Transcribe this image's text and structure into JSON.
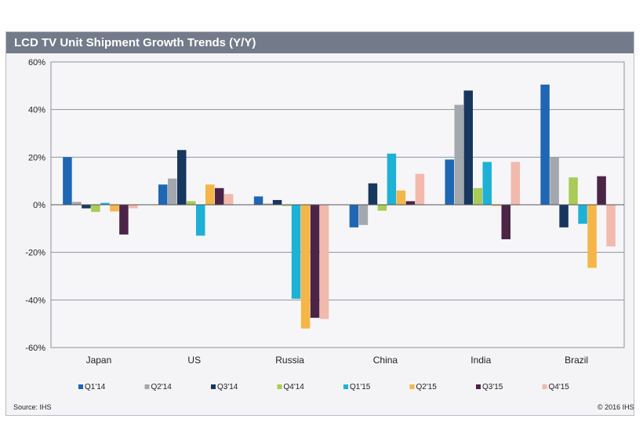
{
  "chart_data": {
    "type": "bar",
    "title": "LCD TV Unit Shipment Growth Trends (Y/Y)",
    "xlabel": "",
    "ylabel": "",
    "ylim": [
      -60,
      60
    ],
    "yticks": [
      60,
      40,
      20,
      0,
      -20,
      -40,
      -60
    ],
    "ytick_labels": [
      "60%",
      "40%",
      "20%",
      "0%",
      "-20%",
      "-40%",
      "-60%"
    ],
    "grid": true,
    "legend_position": "bottom",
    "categories": [
      "Japan",
      "US",
      "Russia",
      "China",
      "India",
      "Brazil"
    ],
    "series": [
      {
        "name": "Q1'14",
        "color": "#1f66b3",
        "values": [
          20,
          8.5,
          3.5,
          -9.5,
          19,
          50.5
        ]
      },
      {
        "name": "Q2'14",
        "color": "#a3a8ae",
        "values": [
          1.2,
          11,
          0.5,
          -8.5,
          42,
          20
        ]
      },
      {
        "name": "Q3'14",
        "color": "#17375e",
        "values": [
          -1.5,
          23,
          2,
          9,
          48,
          -9.5
        ]
      },
      {
        "name": "Q4'14",
        "color": "#a9cb57",
        "values": [
          -3,
          1.5,
          -0.5,
          -2.5,
          7,
          11.5
        ]
      },
      {
        "name": "Q1'15",
        "color": "#1eb1d6",
        "values": [
          0.8,
          -13,
          -39.5,
          21.5,
          18,
          -8
        ]
      },
      {
        "name": "Q2'15",
        "color": "#f6b547",
        "values": [
          -2.8,
          8.5,
          -52,
          6,
          -0.5,
          -26.5
        ]
      },
      {
        "name": "Q3'15",
        "color": "#4b2447",
        "values": [
          -12.5,
          7,
          -47.5,
          1.5,
          -14.5,
          12
        ]
      },
      {
        "name": "Q4'15",
        "color": "#f2b9ad",
        "values": [
          -1.5,
          4.5,
          -48,
          13,
          18,
          -17.5
        ]
      }
    ]
  },
  "footer": {
    "source": "Source: IHS",
    "copyright": "© 2016 IHS"
  }
}
